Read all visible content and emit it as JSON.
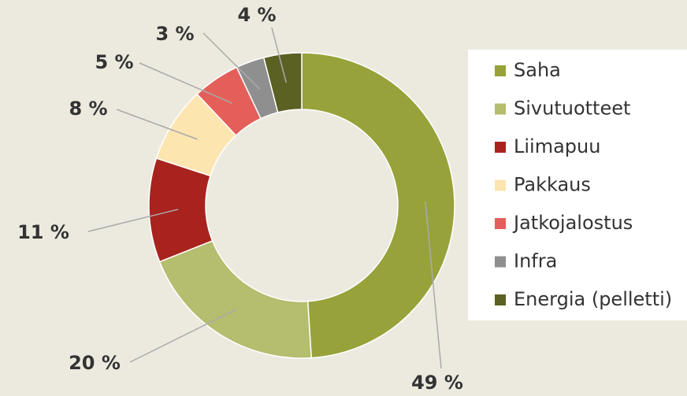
{
  "chart_data": {
    "type": "donut",
    "categories": [
      "Saha",
      "Sivutuotteet",
      "Liimapuu",
      "Pakkaus",
      "Jatkojalostus",
      "Infra",
      "Energia (pelletti)"
    ],
    "values": [
      49,
      20,
      11,
      8,
      5,
      3,
      4
    ],
    "value_labels": [
      "49 %",
      "20 %",
      "11 %",
      "8 %",
      "5 %",
      "3 %",
      "4 %"
    ],
    "colors": [
      "#98a23a",
      "#b5bd6e",
      "#a8231e",
      "#fde5b0",
      "#e45f5a",
      "#8f8f8f",
      "#5b6023"
    ],
    "legend": "right"
  }
}
